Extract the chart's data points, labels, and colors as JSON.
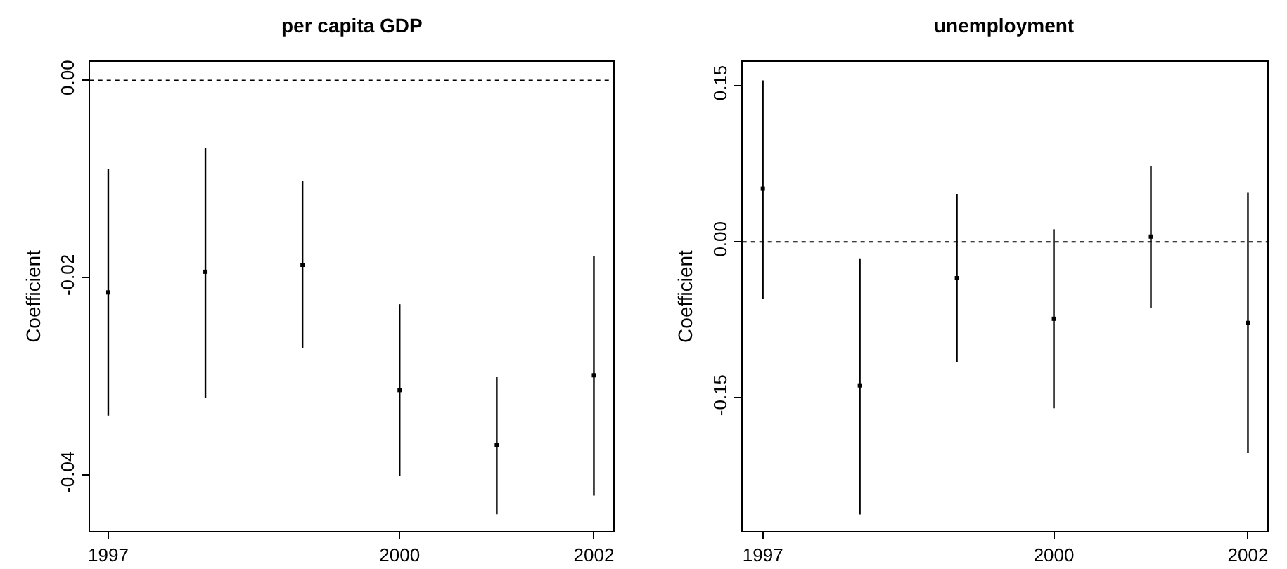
{
  "chart_data": [
    {
      "type": "scatter",
      "title": "per capita GDP",
      "ylabel": "Coefficient",
      "marker": "square",
      "x": [
        1997,
        1998,
        1999,
        2000,
        2001,
        2002
      ],
      "xlim": [
        1996.81,
        2002.2
      ],
      "xticks": [
        1997,
        2000,
        2002
      ],
      "ylim": [
        -0.0457,
        0.0019
      ],
      "yticks": [
        {
          "value": 0,
          "label": "0.00"
        },
        -0.02,
        -0.04
      ],
      "series": [
        {
          "color": "#000000",
          "values": [
            -0.0215,
            -0.0194,
            -0.0187,
            -0.0314,
            -0.037,
            -0.0299
          ],
          "errors": [
            [
              -0.034,
              -0.009
            ],
            [
              -0.0322,
              -0.0068
            ],
            [
              -0.0271,
              -0.0102
            ],
            [
              -0.0401,
              -0.0227
            ],
            [
              -0.044,
              -0.0301
            ],
            [
              -0.0421,
              -0.0178
            ]
          ]
        }
      ],
      "ref_lines": [
        {
          "axis": "y",
          "value": 0,
          "line_style": "dashed",
          "color": "#000000"
        }
      ]
    },
    {
      "type": "scatter",
      "title": "unemployment",
      "ylabel": "Coefficient",
      "marker": "square",
      "x": [
        1997,
        1998,
        1999,
        2000,
        2001,
        2002
      ],
      "xlim": [
        1996.79,
        2002.2
      ],
      "xticks": [
        1997,
        2000,
        2002
      ],
      "ylim": [
        -0.278,
        0.173
      ],
      "yticks": [
        0.15,
        {
          "value": 0,
          "label": "0.00"
        },
        -0.15
      ],
      "series": [
        {
          "color": "#000000",
          "values": [
            0.051,
            -0.138,
            -0.035,
            -0.074,
            0.005,
            -0.078
          ],
          "errors": [
            [
              -0.055,
              0.155
            ],
            [
              -0.262,
              -0.016
            ],
            [
              -0.116,
              0.046
            ],
            [
              -0.16,
              0.012
            ],
            [
              -0.064,
              0.073
            ],
            [
              -0.203,
              0.047
            ]
          ]
        }
      ],
      "ref_lines": [
        {
          "axis": "y",
          "value": 0,
          "line_style": "dashed",
          "color": "#000000"
        }
      ]
    }
  ]
}
